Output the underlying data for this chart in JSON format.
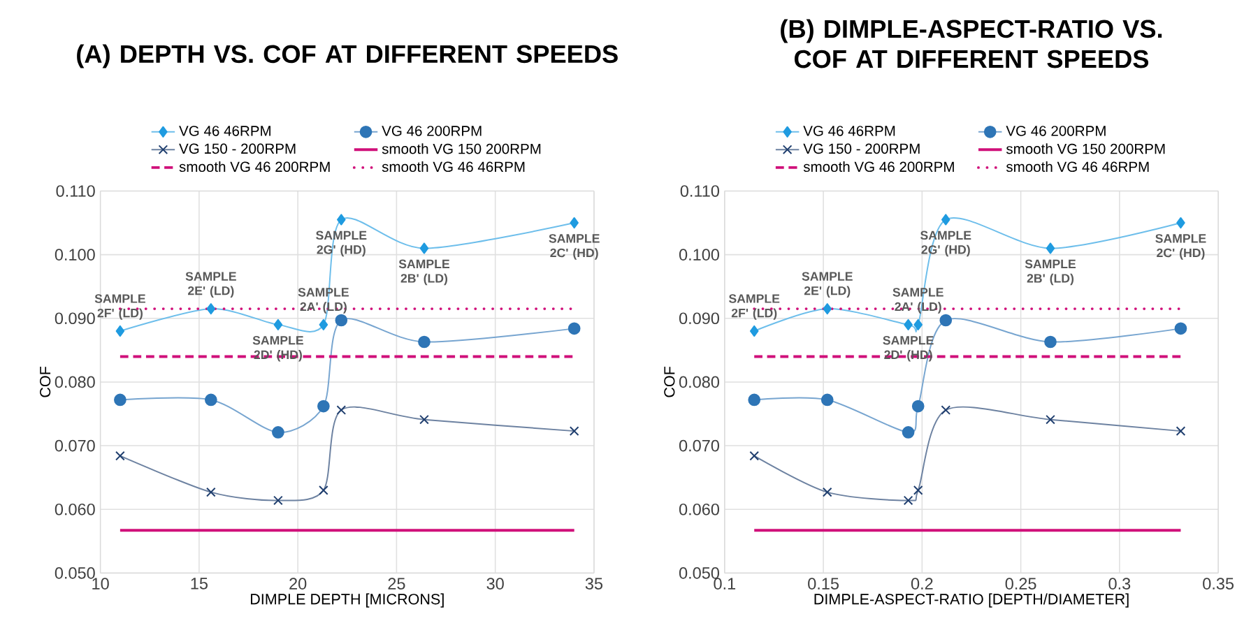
{
  "chart_data": [
    {
      "type": "line",
      "title": "(A) DEPTH VS. COF AT DIFFERENT SPEEDS",
      "xlabel": "DIMPLE DEPTH [MICRONS]",
      "ylabel": "COF",
      "xlim": [
        10,
        35
      ],
      "xticks": [
        10,
        15,
        20,
        25,
        30,
        35
      ],
      "ylim": [
        0.05,
        0.11
      ],
      "yticks": [
        {
          "value": 0.05,
          "label": "0.050"
        },
        {
          "value": 0.06,
          "label": "0.060"
        },
        {
          "value": 0.07,
          "label": "0.070"
        },
        {
          "value": 0.08,
          "label": "0.080"
        },
        {
          "value": 0.09,
          "label": "0.090"
        },
        {
          "value": 0.1,
          "label": "0.100"
        },
        {
          "value": 0.11,
          "label": "0.110"
        }
      ],
      "grid": true,
      "legend": "top",
      "series": [
        {
          "name": "VG 46  46RPM",
          "color": "#1f9be0",
          "marker": "diamond",
          "line_style": "solid",
          "x": [
            11.0,
            15.6,
            19.0,
            21.3,
            22.2,
            26.4,
            34.0
          ],
          "values": [
            0.088,
            0.0915,
            0.089,
            0.089,
            0.1055,
            0.101,
            0.105
          ]
        },
        {
          "name": "VG 46 200RPM",
          "color": "#2e75b6",
          "marker": "circle",
          "line_style": "solid",
          "x": [
            11.0,
            15.6,
            19.0,
            21.3,
            22.2,
            26.4,
            34.0
          ],
          "values": [
            0.0772,
            0.0772,
            0.0721,
            0.0762,
            0.0897,
            0.0863,
            0.0884
          ]
        },
        {
          "name": "VG 150 - 200RPM",
          "color": "#1f3e6e",
          "marker": "cross",
          "line_style": "solid",
          "x": [
            11.0,
            15.6,
            19.0,
            21.3,
            22.2,
            26.4,
            34.0
          ],
          "values": [
            0.0684,
            0.0627,
            0.0614,
            0.063,
            0.0756,
            0.0741,
            0.0723
          ]
        },
        {
          "name": "smooth VG 150 200RPM",
          "color": "#d0107a",
          "marker": "none",
          "line_style": "solid",
          "x": [
            11.0,
            34.0
          ],
          "values": [
            0.0567,
            0.0567
          ]
        },
        {
          "name": "smooth VG 46 200RPM",
          "color": "#d0107a",
          "marker": "none",
          "line_style": "dashed",
          "x": [
            11.0,
            34.0
          ],
          "values": [
            0.084,
            0.084
          ]
        },
        {
          "name": "smooth VG 46 46RPM",
          "color": "#d0107a",
          "marker": "none",
          "line_style": "dotted",
          "x": [
            11.0,
            34.0
          ],
          "values": [
            0.0915,
            0.0915
          ]
        }
      ],
      "annotations": [
        {
          "text": "SAMPLE 2F' (LD)",
          "x": 11.0,
          "y": 0.088
        },
        {
          "text": "SAMPLE 2E' (LD)",
          "x": 15.6,
          "y": 0.0915
        },
        {
          "text": "SAMPLE 2G' (HD)",
          "x": 22.2,
          "y": 0.1055
        },
        {
          "text": "SAMPLE 2A' (LD)",
          "x": 21.3,
          "y": 0.089
        },
        {
          "text": "SAMPLE 2B' (LD)",
          "x": 26.4,
          "y": 0.101
        },
        {
          "text": "SAMPLE 2C' (HD)",
          "x": 34.0,
          "y": 0.105
        },
        {
          "text": "SAMPLE 2D' (HD)",
          "x": 19.0,
          "y": 0.089
        }
      ]
    },
    {
      "type": "line",
      "title": "(B) DIMPLE-ASPECT-RATIO VS. COF AT DIFFERENT SPEEDS",
      "xlabel": "DIMPLE-ASPECT-RATIO [DEPTH/DIAMETER]",
      "ylabel": "COF",
      "xlim": [
        0.1,
        0.35
      ],
      "xticks": [
        0.1,
        0.15,
        0.2,
        0.25,
        0.3,
        0.35
      ],
      "ylim": [
        0.05,
        0.11
      ],
      "yticks": [
        {
          "value": 0.05,
          "label": "0.050"
        },
        {
          "value": 0.06,
          "label": "0.060"
        },
        {
          "value": 0.07,
          "label": "0.070"
        },
        {
          "value": 0.08,
          "label": "0.080"
        },
        {
          "value": 0.09,
          "label": "0.090"
        },
        {
          "value": 0.1,
          "label": "0.100"
        },
        {
          "value": 0.11,
          "label": "0.110"
        }
      ],
      "grid": true,
      "legend": "top",
      "series": [
        {
          "name": "VG 46  46RPM",
          "color": "#1f9be0",
          "marker": "diamond",
          "line_style": "solid",
          "x": [
            0.115,
            0.152,
            0.193,
            0.198,
            0.212,
            0.265,
            0.331
          ],
          "values": [
            0.088,
            0.0915,
            0.089,
            0.089,
            0.1055,
            0.101,
            0.105
          ]
        },
        {
          "name": "VG 46 200RPM",
          "color": "#2e75b6",
          "marker": "circle",
          "line_style": "solid",
          "x": [
            0.115,
            0.152,
            0.193,
            0.198,
            0.212,
            0.265,
            0.331
          ],
          "values": [
            0.0772,
            0.0772,
            0.0721,
            0.0762,
            0.0897,
            0.0863,
            0.0884
          ]
        },
        {
          "name": "VG 150 - 200RPM",
          "color": "#1f3e6e",
          "marker": "cross",
          "line_style": "solid",
          "x": [
            0.115,
            0.152,
            0.193,
            0.198,
            0.212,
            0.265,
            0.331
          ],
          "values": [
            0.0684,
            0.0627,
            0.0614,
            0.063,
            0.0756,
            0.0741,
            0.0723
          ]
        },
        {
          "name": "smooth VG 150 200RPM",
          "color": "#d0107a",
          "marker": "none",
          "line_style": "solid",
          "x": [
            0.115,
            0.331
          ],
          "values": [
            0.0567,
            0.0567
          ]
        },
        {
          "name": "smooth VG 46 200RPM",
          "color": "#d0107a",
          "marker": "none",
          "line_style": "dashed",
          "x": [
            0.115,
            0.331
          ],
          "values": [
            0.084,
            0.084
          ]
        },
        {
          "name": "smooth VG 46 46RPM",
          "color": "#d0107a",
          "marker": "none",
          "line_style": "dotted",
          "x": [
            0.115,
            0.331
          ],
          "values": [
            0.0915,
            0.0915
          ]
        }
      ],
      "annotations": [
        {
          "text": "SAMPLE 2F' (LD)",
          "x": 0.115,
          "y": 0.088
        },
        {
          "text": "SAMPLE 2E' (LD)",
          "x": 0.152,
          "y": 0.0915
        },
        {
          "text": "SAMPLE 2G' (HD)",
          "x": 0.212,
          "y": 0.1055
        },
        {
          "text": "SAMPLE 2A' (LD)",
          "x": 0.198,
          "y": 0.089
        },
        {
          "text": "SAMPLE 2B' (LD)",
          "x": 0.265,
          "y": 0.101
        },
        {
          "text": "SAMPLE 2C' (HD)",
          "x": 0.331,
          "y": 0.105
        },
        {
          "text": "SAMPLE 2D' (HD)",
          "x": 0.193,
          "y": 0.089
        }
      ]
    }
  ]
}
